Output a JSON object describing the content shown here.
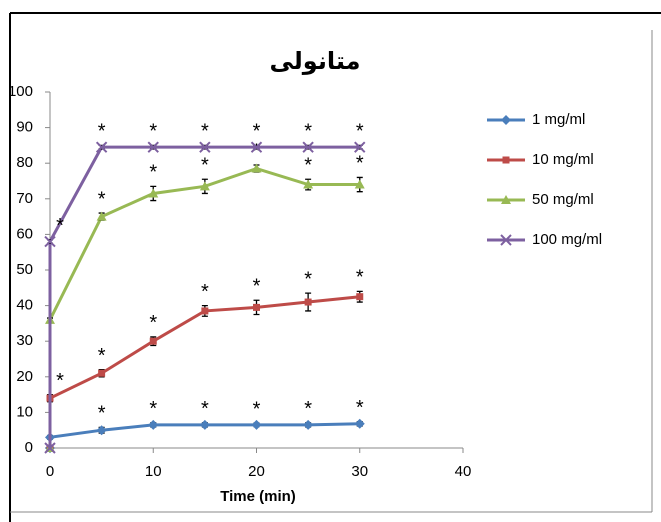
{
  "chart_data": {
    "type": "line",
    "title": "متانولی",
    "x_label": "Time (min)",
    "x": [
      0,
      0,
      5,
      10,
      15,
      20,
      25,
      30
    ],
    "series": [
      {
        "name": "1 mg/ml",
        "color": "#4a7ebb",
        "marker": "diamond",
        "values": [
          0,
          3,
          5,
          6.5,
          6.5,
          6.5,
          6.5,
          6.8
        ],
        "errors": [
          0,
          0.5,
          0.8,
          0.6,
          0.6,
          0.5,
          0.6,
          0.6
        ],
        "labels": [
          null,
          null,
          "*",
          "*",
          "*",
          "*",
          "*",
          "*"
        ]
      },
      {
        "name": "10 mg/ml",
        "color": "#be4b48",
        "marker": "square",
        "values": [
          0,
          14,
          21,
          30,
          38.5,
          39.5,
          41,
          42.5
        ],
        "errors": [
          0,
          1,
          1,
          1.2,
          1.5,
          2,
          2.5,
          1.5
        ],
        "labels": [
          null,
          "*",
          "*",
          "*",
          "*",
          "*",
          "*",
          "*"
        ]
      },
      {
        "name": "50 mg/ml",
        "color": "#98b954",
        "marker": "triangle",
        "values": [
          0,
          36,
          65,
          71.5,
          73.5,
          78.5,
          74,
          74
        ],
        "errors": [
          0,
          0.5,
          1,
          2,
          2,
          1,
          1.5,
          2
        ],
        "labels": [
          null,
          null,
          "*",
          "*",
          "*",
          "*",
          "*",
          "*"
        ]
      },
      {
        "name": "100 mg/ml",
        "color": "#7d60a0",
        "marker": "x",
        "values": [
          0,
          58,
          84.5,
          84.5,
          84.5,
          84.5,
          84.5,
          84.5
        ],
        "errors": [
          0,
          0.5,
          0.5,
          0.5,
          0.5,
          0.5,
          0.5,
          0.5
        ],
        "labels": [
          null,
          "*",
          "*",
          "*",
          "*",
          "*",
          "*",
          "*"
        ]
      }
    ],
    "xlim": [
      0,
      40
    ],
    "xticks": [
      0,
      10,
      20,
      30,
      40
    ],
    "ylim": [
      0,
      100
    ],
    "yticks": [
      0,
      10,
      20,
      30,
      40,
      50,
      60,
      70,
      80,
      90,
      100
    ],
    "grid": false,
    "legend": "right"
  }
}
